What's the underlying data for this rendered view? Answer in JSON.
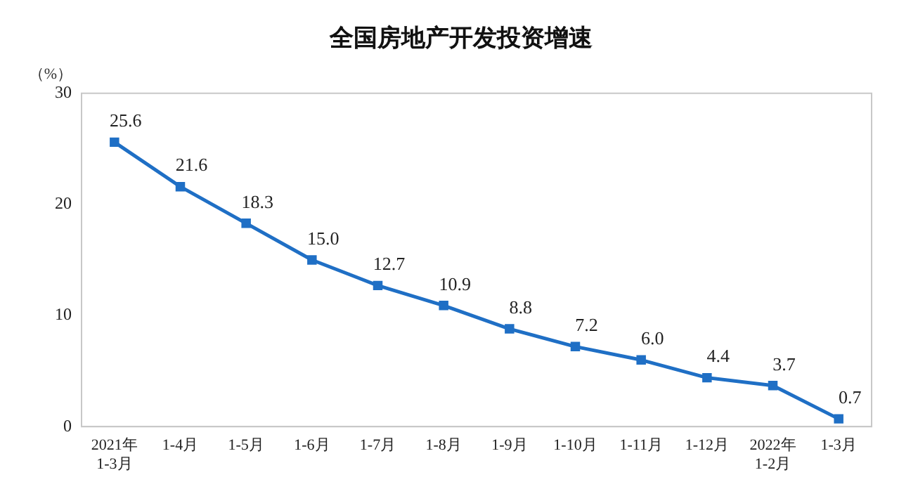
{
  "chart_data": {
    "type": "line",
    "title": "全国房地产开发投资增速",
    "ylabel": "（%）",
    "categories": [
      "2021年\n1-3月",
      "1-4月",
      "1-5月",
      "1-6月",
      "1-7月",
      "1-8月",
      "1-9月",
      "1-10月",
      "1-11月",
      "1-12月",
      "2022年\n1-2月",
      "1-3月"
    ],
    "series": [
      {
        "color": "#1f6fc5",
        "values": [
          25.6,
          21.6,
          18.3,
          15.0,
          12.7,
          10.9,
          8.8,
          7.2,
          6.0,
          4.4,
          3.7,
          0.7
        ],
        "value_labels": [
          "25.6",
          "21.6",
          "18.3",
          "15.0",
          "12.7",
          "10.9",
          "8.8",
          "7.2",
          "6.0",
          "4.4",
          "3.7",
          "0.7"
        ]
      }
    ],
    "ylim": [
      0,
      30
    ],
    "yticks": [
      0,
      10,
      20,
      30
    ],
    "grid": false,
    "legend": false,
    "marker": "square",
    "line_style": "solid"
  }
}
